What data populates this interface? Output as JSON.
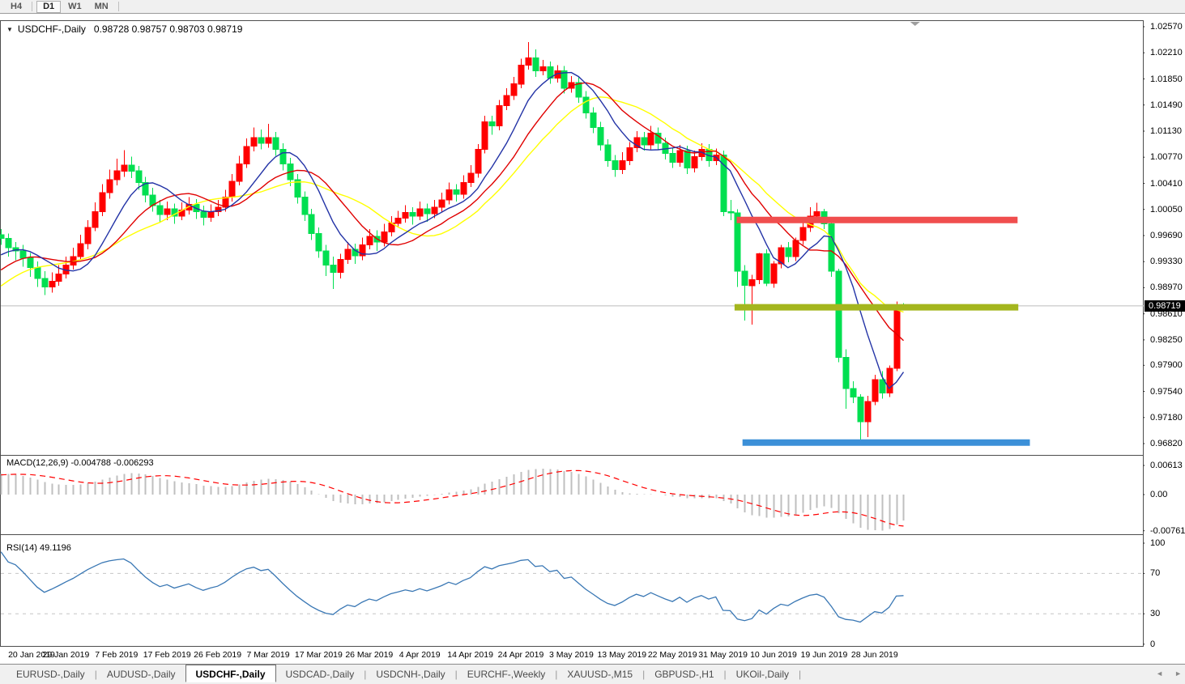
{
  "toolbar": {
    "timeframes": [
      {
        "label": "H4",
        "active": false
      },
      {
        "label": "D1",
        "active": true
      },
      {
        "label": "W1",
        "active": false
      },
      {
        "label": "MN",
        "active": false
      }
    ]
  },
  "main_chart": {
    "collapse_icon": "▼",
    "title": "USDCHF-,Daily",
    "ohlc_text": "0.98728 0.98757 0.98703 0.98719",
    "price_tag": "0.98719",
    "price_axis_labels": [
      "1.02570",
      "1.02210",
      "1.01850",
      "1.01490",
      "1.01130",
      "1.00770",
      "1.00410",
      "1.00050",
      "0.99690",
      "0.99330",
      "0.98970",
      "0.98610",
      "0.98250",
      "0.97900",
      "0.97540",
      "0.97180",
      "0.96820"
    ],
    "date_axis_labels": [
      "20 Jan 2019",
      "29 Jan 2019",
      "7 Feb 2019",
      "17 Feb 2019",
      "26 Feb 2019",
      "7 Mar 2019",
      "17 Mar 2019",
      "26 Mar 2019",
      "4 Apr 2019",
      "14 Apr 2019",
      "24 Apr 2019",
      "3 May 2019",
      "13 May 2019",
      "22 May 2019",
      "31 May 2019",
      "10 Jun 2019",
      "19 Jun 2019",
      "28 Jun 2019"
    ]
  },
  "macd_panel": {
    "label": "MACD(12,26,9)",
    "values_text": "-0.004788 -0.006293",
    "axis_labels": [
      {
        "text": "0.00613",
        "value": 0.00613
      },
      {
        "text": "0.00",
        "value": 0.0
      },
      {
        "text": "-0.007612",
        "value": -0.007612
      }
    ]
  },
  "rsi_panel": {
    "label": "RSI(14)",
    "value_text": "49.1196",
    "axis_labels": [
      {
        "text": "100",
        "value": 100
      },
      {
        "text": "70",
        "value": 70
      },
      {
        "text": "30",
        "value": 30
      },
      {
        "text": "0",
        "value": 0
      }
    ]
  },
  "tab_bar": {
    "tabs": [
      {
        "label": "EURUSD-,Daily",
        "active": false
      },
      {
        "label": "AUDUSD-,Daily",
        "active": false
      },
      {
        "label": "USDCHF-,Daily",
        "active": true
      },
      {
        "label": "USDCAD-,Daily",
        "active": false
      },
      {
        "label": "USDCNH-,Daily",
        "active": false
      },
      {
        "label": "EURCHF-,Weekly",
        "active": false
      },
      {
        "label": "XAUUSD-,M15",
        "active": false
      },
      {
        "label": "GBPUSD-,H1",
        "active": false
      },
      {
        "label": "UKOil-,Daily",
        "active": false
      }
    ],
    "scroll_left_icon": "◄",
    "scroll_right_icon": "►"
  },
  "chart_data": {
    "type": "candlestick",
    "symbol": "USDCHF",
    "period": "Daily",
    "current_bar": {
      "open": 0.98728,
      "high": 0.98757,
      "low": 0.98703,
      "close": 0.98719
    },
    "ylim": [
      0.96664,
      1.02648
    ],
    "price_line": 0.98719,
    "colors": {
      "bull": "#FF0000",
      "bear": "#00DF50",
      "ma_fast": "#2333A6",
      "ma_mid": "#E00000",
      "ma_slow": "#FFFF00",
      "hline_red": "#F04E4E",
      "hline_olive": "#A4B61E",
      "hline_blue": "#3C90D8",
      "macd_hist": "#BFBFBF",
      "macd_signal": "#FF0000",
      "rsi_line": "#3977B4",
      "level_dash": "#C6C6C6",
      "price_line": "#BBBBBB",
      "shift_marker": "#9E9E9E"
    },
    "moving_averages": [
      {
        "period": 18,
        "color_key": "ma_slow"
      },
      {
        "period": 13,
        "color_key": "ma_mid"
      },
      {
        "period": 8,
        "color_key": "ma_fast"
      }
    ],
    "hlines": [
      {
        "price": 0.99905,
        "bar_from": 101.9,
        "bar_to": 140.8,
        "thickness": 8,
        "color_key": "hline_red"
      },
      {
        "price": 0.987,
        "bar_from": 101.6,
        "bar_to": 140.9,
        "thickness": 8,
        "color_key": "hline_olive"
      },
      {
        "price": 0.96835,
        "bar_from": 102.7,
        "bar_to": 142.5,
        "thickness": 8,
        "color_key": "hline_blue"
      }
    ],
    "macd": {
      "fast": 12,
      "slow": 26,
      "signal": 9,
      "ylim": [
        -0.008343,
        0.008173
      ],
      "current_macd": -0.004788,
      "current_signal": -0.006293
    },
    "rsi": {
      "period": 14,
      "levels": [
        30,
        70
      ],
      "ylim": [
        -1.8,
        108.0
      ],
      "current": 49.1196
    },
    "shift_marker_bar": 126.6,
    "date_grid": {
      "first_bar": 2,
      "bar_step": 7
    },
    "warmup_closes": [
      0.973,
      0.9722,
      0.9728,
      0.9736,
      0.973,
      0.9724,
      0.9732,
      0.974,
      0.9734,
      0.9742,
      0.9748,
      0.9742,
      0.975,
      0.9756,
      0.975,
      0.9744,
      0.9752,
      0.9758,
      0.9752,
      0.976,
      0.9766,
      0.976,
      0.9768,
      0.9774,
      0.9768,
      0.9776,
      0.9784,
      0.9792,
      0.9786,
      0.9794,
      0.9802,
      0.981,
      0.9818,
      0.9826,
      0.9834,
      0.9842,
      0.985,
      0.9858,
      0.9868,
      0.9878,
      0.9888,
      0.9898,
      0.9908,
      0.9918,
      0.9928,
      0.9936,
      0.9944,
      0.995,
      0.9946,
      0.9952
    ],
    "candles": [
      [
        0.997,
        0.9978,
        0.9956,
        0.9965
      ],
      [
        0.9965,
        0.9972,
        0.994,
        0.9952
      ],
      [
        0.9952,
        0.996,
        0.9935,
        0.9948
      ],
      [
        0.9948,
        0.9956,
        0.9926,
        0.9938
      ],
      [
        0.9938,
        0.9945,
        0.9912,
        0.9925
      ],
      [
        0.9925,
        0.9933,
        0.9898,
        0.991
      ],
      [
        0.991,
        0.992,
        0.9887,
        0.9898
      ],
      [
        0.9898,
        0.9918,
        0.989,
        0.9906
      ],
      [
        0.9906,
        0.9928,
        0.99,
        0.9916
      ],
      [
        0.9916,
        0.994,
        0.991,
        0.9928
      ],
      [
        0.9928,
        0.9952,
        0.9922,
        0.994
      ],
      [
        0.994,
        0.997,
        0.9935,
        0.9958
      ],
      [
        0.9958,
        0.999,
        0.995,
        0.998
      ],
      [
        0.998,
        1.0015,
        0.9975,
        1.0002
      ],
      [
        1.0002,
        1.004,
        0.9996,
        1.0028
      ],
      [
        1.0028,
        1.006,
        1.002,
        1.0046
      ],
      [
        1.0046,
        1.0075,
        1.0038,
        1.0058
      ],
      [
        1.0058,
        1.0087,
        1.005,
        1.0066
      ],
      [
        1.0066,
        1.0078,
        1.0048,
        1.0058
      ],
      [
        1.0058,
        1.0065,
        1.0032,
        1.0042
      ],
      [
        1.0042,
        1.005,
        1.0015,
        1.0025
      ],
      [
        1.0025,
        1.0035,
        1.0002,
        1.001
      ],
      [
        1.001,
        1.0018,
        0.9988,
        0.9998
      ],
      [
        0.9998,
        1.0016,
        0.999,
        1.0006
      ],
      [
        1.0006,
        1.0013,
        0.9985,
        0.9996
      ],
      [
        0.9996,
        1.0015,
        0.999,
        1.0004
      ],
      [
        1.0004,
        1.0022,
        0.9998,
        1.0012
      ],
      [
        1.0012,
        1.0019,
        0.9992,
        1.0002
      ],
      [
        1.0002,
        1.001,
        0.9983,
        0.9994
      ],
      [
        0.9994,
        1.0012,
        0.9988,
        1.0002
      ],
      [
        1.0002,
        1.0018,
        0.9996,
        1.0008
      ],
      [
        1.0008,
        1.0032,
        1.0002,
        1.0022
      ],
      [
        1.0022,
        1.0054,
        1.0016,
        1.0044
      ],
      [
        1.0044,
        1.0079,
        1.0038,
        1.0068
      ],
      [
        1.0068,
        1.0103,
        1.0062,
        1.0092
      ],
      [
        1.0092,
        1.0118,
        1.0085,
        1.0104
      ],
      [
        1.0104,
        1.0115,
        1.0088,
        1.0096
      ],
      [
        1.0096,
        1.0123,
        1.009,
        1.0104
      ],
      [
        1.0104,
        1.0112,
        1.0079,
        1.0088
      ],
      [
        1.0088,
        1.0096,
        1.0059,
        1.0068
      ],
      [
        1.0068,
        1.0076,
        1.0037,
        1.0046
      ],
      [
        1.0046,
        1.0054,
        1.0013,
        1.0022
      ],
      [
        1.0022,
        1.003,
        0.9989,
        0.9998
      ],
      [
        0.9998,
        1.0006,
        0.9963,
        0.9972
      ],
      [
        0.9972,
        0.998,
        0.9938,
        0.9948
      ],
      [
        0.9948,
        0.9956,
        0.9913,
        0.9928
      ],
      [
        0.9928,
        0.994,
        0.9895,
        0.9918
      ],
      [
        0.9918,
        0.9944,
        0.991,
        0.9936
      ],
      [
        0.9936,
        0.996,
        0.993,
        0.995
      ],
      [
        0.995,
        0.9958,
        0.993,
        0.9941
      ],
      [
        0.9941,
        0.9966,
        0.9935,
        0.9956
      ],
      [
        0.9956,
        0.9978,
        0.995,
        0.9968
      ],
      [
        0.9968,
        0.9976,
        0.9948,
        0.996
      ],
      [
        0.996,
        0.9985,
        0.9954,
        0.9974
      ],
      [
        0.9974,
        0.9996,
        0.9968,
        0.9986
      ],
      [
        0.9986,
        1.0003,
        0.998,
        0.9993
      ],
      [
        0.9993,
        1.0011,
        0.9987,
        1.0001
      ],
      [
        1.0001,
        1.0008,
        0.9984,
        0.9996
      ],
      [
        0.9996,
        1.0016,
        0.999,
        1.0006
      ],
      [
        1.0006,
        1.0013,
        0.9988,
        0.9999
      ],
      [
        0.9999,
        1.0018,
        0.9993,
        1.0008
      ],
      [
        1.0008,
        1.0028,
        1.0002,
        1.0018
      ],
      [
        1.0018,
        1.0042,
        1.0012,
        1.0032
      ],
      [
        1.0032,
        1.004,
        1.0016,
        1.0026
      ],
      [
        1.0026,
        1.0052,
        1.002,
        1.0042
      ],
      [
        1.0042,
        1.0066,
        1.0036,
        1.0055
      ],
      [
        1.0055,
        1.0095,
        1.0049,
        1.0088
      ],
      [
        1.0088,
        1.0134,
        1.0082,
        1.0126
      ],
      [
        1.0126,
        1.0134,
        1.0108,
        1.012
      ],
      [
        1.012,
        1.0156,
        1.0114,
        1.0148
      ],
      [
        1.0148,
        1.0172,
        1.0142,
        1.0162
      ],
      [
        1.0162,
        1.0188,
        1.0156,
        1.0178
      ],
      [
        1.0178,
        1.0213,
        1.0172,
        1.0204
      ],
      [
        1.0204,
        1.0236,
        1.0198,
        1.0214
      ],
      [
        1.0214,
        1.0226,
        1.0188,
        1.0196
      ],
      [
        1.0196,
        1.0211,
        1.019,
        1.0202
      ],
      [
        1.0202,
        1.0209,
        1.0178,
        1.0186
      ],
      [
        1.0186,
        1.0204,
        1.018,
        1.0196
      ],
      [
        1.0196,
        1.0203,
        1.0165,
        1.0172
      ],
      [
        1.0172,
        1.0189,
        1.0166,
        1.018
      ],
      [
        1.018,
        1.0187,
        1.0152,
        1.016
      ],
      [
        1.016,
        1.0168,
        1.013,
        1.0138
      ],
      [
        1.0138,
        1.0146,
        1.011,
        1.0118
      ],
      [
        1.0118,
        1.0126,
        1.0086,
        1.0094
      ],
      [
        1.0094,
        1.0102,
        1.0064,
        1.0072
      ],
      [
        1.0072,
        1.008,
        1.005,
        1.006
      ],
      [
        1.006,
        1.0084,
        1.0054,
        1.0072
      ],
      [
        1.0072,
        1.0098,
        1.0066,
        1.009
      ],
      [
        1.009,
        1.0113,
        1.0084,
        1.0104
      ],
      [
        1.0104,
        1.0112,
        1.0086,
        1.0094
      ],
      [
        1.0094,
        1.012,
        1.0088,
        1.011
      ],
      [
        1.011,
        1.0118,
        1.0088,
        1.0096
      ],
      [
        1.0096,
        1.0104,
        1.0074,
        1.0082
      ],
      [
        1.0082,
        1.009,
        1.0062,
        1.007
      ],
      [
        1.007,
        1.0094,
        1.0064,
        1.0086
      ],
      [
        1.0086,
        1.0093,
        1.0054,
        1.0062
      ],
      [
        1.0062,
        1.0086,
        1.0056,
        1.0078
      ],
      [
        1.0078,
        1.0096,
        1.0072,
        1.0088
      ],
      [
        1.0088,
        1.0095,
        1.0064,
        1.0072
      ],
      [
        1.0072,
        1.0089,
        1.0066,
        1.008
      ],
      [
        1.008,
        1.0086,
        0.9996,
        1.0002
      ],
      [
        1.0002,
        1.0018,
        0.999,
        1.0
      ],
      [
        1.0,
        1.0005,
        0.9898,
        0.992
      ],
      [
        0.992,
        0.9928,
        0.9852,
        0.99
      ],
      [
        0.99,
        0.9915,
        0.9846,
        0.9908
      ],
      [
        0.9908,
        0.9945,
        0.9902,
        0.9944
      ],
      [
        0.9944,
        0.995,
        0.9899,
        0.9903
      ],
      [
        0.9903,
        0.9934,
        0.9897,
        0.993
      ],
      [
        0.993,
        0.9956,
        0.9924,
        0.9952
      ],
      [
        0.9952,
        0.996,
        0.9932,
        0.994
      ],
      [
        0.994,
        0.9966,
        0.9934,
        0.9962
      ],
      [
        0.9962,
        0.9986,
        0.9956,
        0.998
      ],
      [
        0.998,
        1.0008,
        0.9974,
        0.9996
      ],
      [
        0.9996,
        1.0014,
        0.999,
        1.0002
      ],
      [
        1.0002,
        1.0006,
        0.9978,
        0.9985
      ],
      [
        0.9985,
        0.999,
        0.9912,
        0.992
      ],
      [
        0.992,
        0.9923,
        0.9794,
        0.9801
      ],
      [
        0.9801,
        0.9812,
        0.973,
        0.9758
      ],
      [
        0.9758,
        0.9768,
        0.9738,
        0.9746
      ],
      [
        0.9746,
        0.975,
        0.9682,
        0.9712
      ],
      [
        0.9712,
        0.9748,
        0.9691,
        0.974
      ],
      [
        0.974,
        0.9777,
        0.9735,
        0.977
      ],
      [
        0.977,
        0.9782,
        0.9744,
        0.9752
      ],
      [
        0.9752,
        0.979,
        0.9746,
        0.9786
      ],
      [
        0.9786,
        0.9878,
        0.9782,
        0.9868
      ],
      [
        0.98728,
        0.98757,
        0.98703,
        0.98719
      ]
    ]
  }
}
